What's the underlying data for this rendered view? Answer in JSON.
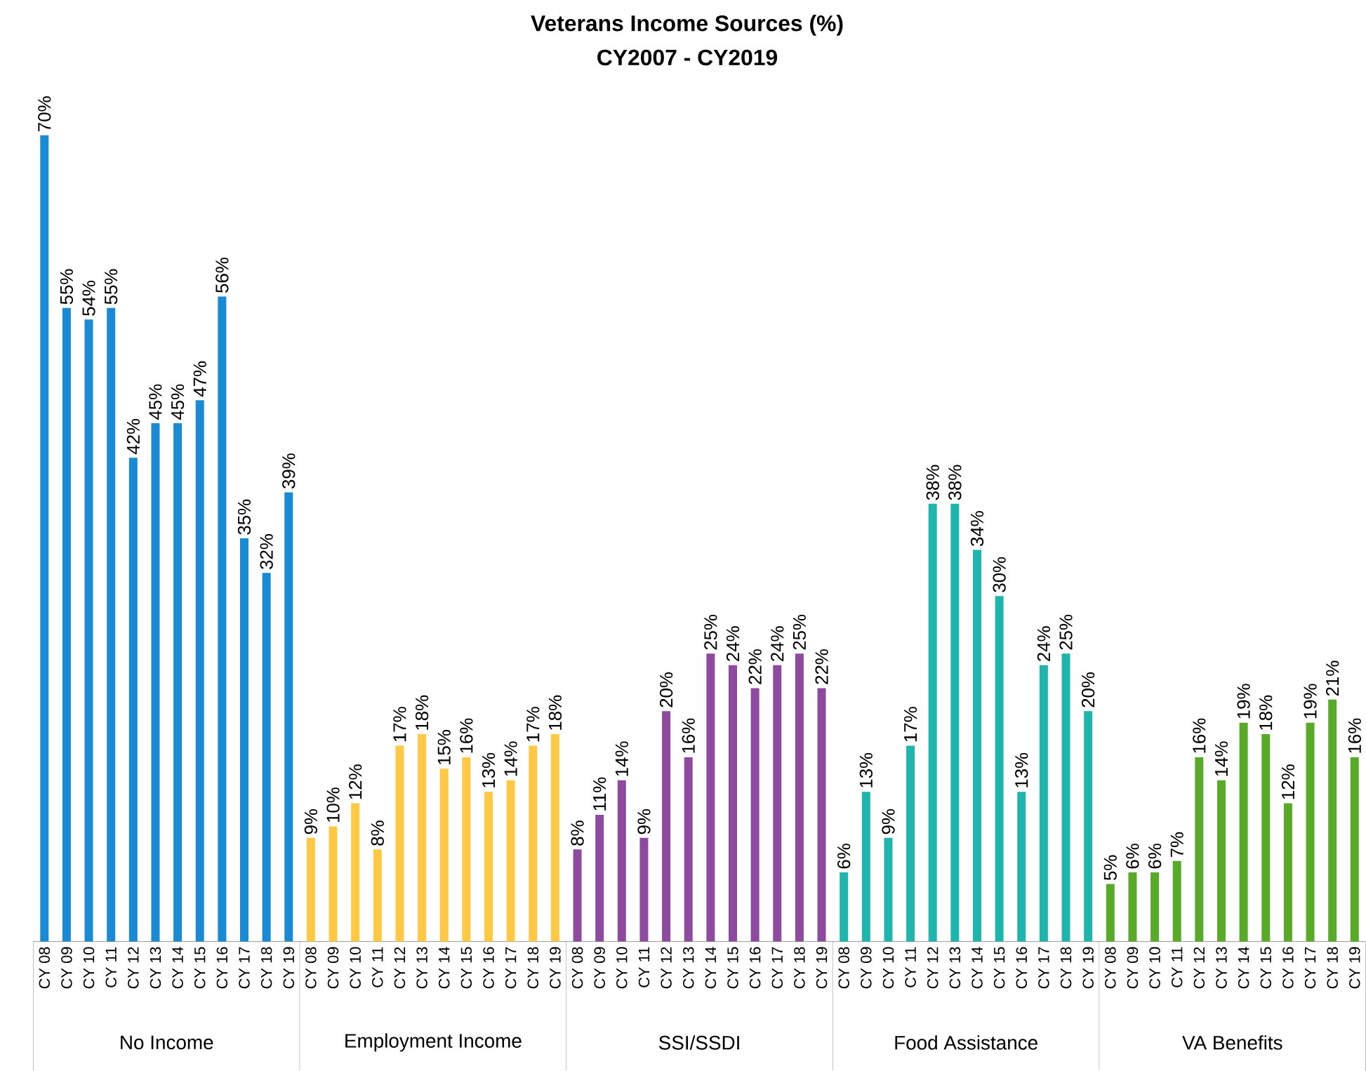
{
  "chart_data": {
    "type": "bar",
    "title": "Veterans Income Sources (%)",
    "subtitle": "CY2007 - CY2019",
    "categories": [
      "CY 08",
      "CY 09",
      "CY 10",
      "CY 11",
      "CY 12",
      "CY 13",
      "CY 14",
      "CY 15",
      "CY 16",
      "CY 17",
      "CY 18",
      "CY 19",
      "CY 08",
      "CY 09",
      "CY 10",
      "CY 11",
      "CY 12",
      "CY 13",
      "CY 14",
      "CY 15",
      "CY 16",
      "CY 17",
      "CY 18",
      "CY 19",
      "CY 08",
      "CY 09",
      "CY 10",
      "CY 11",
      "CY 12",
      "CY 13",
      "CY 14",
      "CY 15",
      "CY 16",
      "CY 17",
      "CY 18",
      "CY 19",
      "CY 08",
      "CY 09",
      "CY 10",
      "CY 11",
      "CY 12",
      "CY 13",
      "CY 14",
      "CY 15",
      "CY 16",
      "CY 17",
      "CY 18",
      "CY 19",
      "CY 08",
      "CY 09",
      "CY 10",
      "CY 11",
      "CY 12",
      "CY 13",
      "CY 14",
      "CY 15",
      "CY 16",
      "CY 17",
      "CY 18",
      "CY 19"
    ],
    "values": [
      70,
      55,
      54,
      55,
      42,
      45,
      45,
      47,
      56,
      35,
      32,
      39,
      9,
      10,
      12,
      8,
      17,
      18,
      15,
      16,
      13,
      14,
      17,
      18,
      8,
      11,
      14,
      9,
      20,
      16,
      25,
      24,
      22,
      24,
      25,
      22,
      6,
      13,
      9,
      17,
      38,
      38,
      34,
      30,
      13,
      24,
      25,
      20,
      5,
      6,
      6,
      7,
      16,
      14,
      19,
      18,
      12,
      19,
      21,
      16
    ],
    "value_labels": [
      "70%",
      "55%",
      "54%",
      "55%",
      "42%",
      "45%",
      "45%",
      "47%",
      "56%",
      "35%",
      "32%",
      "39%",
      "9%",
      "10%",
      "12%",
      "8%",
      "17%",
      "18%",
      "15%",
      "16%",
      "13%",
      "14%",
      "17%",
      "18%",
      "8%",
      "11%",
      "14%",
      "9%",
      "20%",
      "16%",
      "25%",
      "24%",
      "22%",
      "24%",
      "25%",
      "22%",
      "6%",
      "13%",
      "9%",
      "17%",
      "38%",
      "38%",
      "34%",
      "30%",
      "13%",
      "24%",
      "25%",
      "20%",
      "5%",
      "6%",
      "6%",
      "7%",
      "16%",
      "14%",
      "19%",
      "18%",
      "12%",
      "19%",
      "21%",
      "16%"
    ],
    "colors": [
      "#1a8ad4",
      "#1a8ad4",
      "#1a8ad4",
      "#1a8ad4",
      "#1a8ad4",
      "#1a8ad4",
      "#1a8ad4",
      "#1a8ad4",
      "#1a8ad4",
      "#1a8ad4",
      "#1a8ad4",
      "#1a8ad4",
      "#ffc845",
      "#ffc845",
      "#ffc845",
      "#ffc845",
      "#ffc845",
      "#ffc845",
      "#ffc845",
      "#ffc845",
      "#ffc845",
      "#ffc845",
      "#ffc845",
      "#ffc845",
      "#8e4a9e",
      "#8e4a9e",
      "#8e4a9e",
      "#8e4a9e",
      "#8e4a9e",
      "#8e4a9e",
      "#8e4a9e",
      "#8e4a9e",
      "#8e4a9e",
      "#8e4a9e",
      "#8e4a9e",
      "#8e4a9e",
      "#1fb5ad",
      "#1fb5ad",
      "#1fb5ad",
      "#1fb5ad",
      "#1fb5ad",
      "#1fb5ad",
      "#1fb5ad",
      "#1fb5ad",
      "#1fb5ad",
      "#1fb5ad",
      "#1fb5ad",
      "#1fb5ad",
      "#5aaa2a",
      "#5aaa2a",
      "#5aaa2a",
      "#5aaa2a",
      "#5aaa2a",
      "#5aaa2a",
      "#5aaa2a",
      "#5aaa2a",
      "#5aaa2a",
      "#5aaa2a",
      "#5aaa2a",
      "#5aaa2a"
    ],
    "annotations": [
      "No Income",
      "Employment Income",
      "SSI/SSDI",
      "Food Assistance",
      "VA Benefits"
    ]
  }
}
